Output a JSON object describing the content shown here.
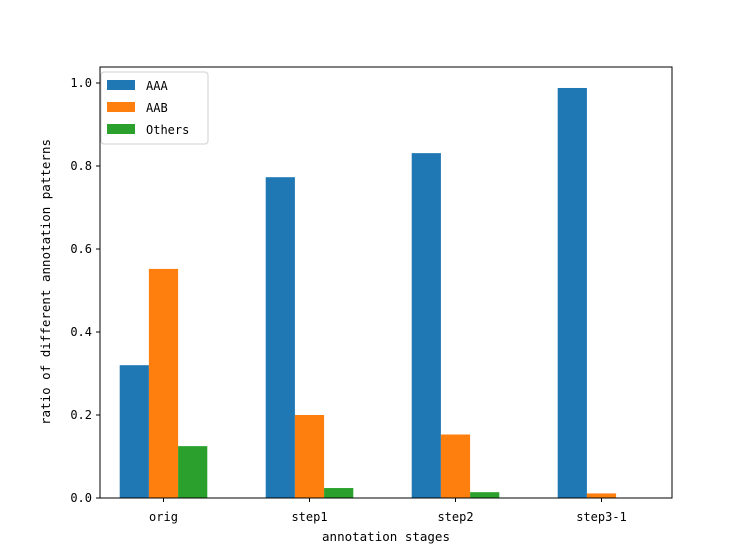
{
  "chart_data": {
    "type": "bar",
    "title": "",
    "xlabel": "annotation stages",
    "ylabel": "ratio of different annotation patterns",
    "categories": [
      "orig",
      "step1",
      "step2",
      "step3-1"
    ],
    "series": [
      {
        "name": "AAA",
        "color": "#1f77b4",
        "values": [
          0.32,
          0.773,
          0.831,
          0.988
        ]
      },
      {
        "name": "AAB",
        "color": "#ff7f0e",
        "values": [
          0.552,
          0.2,
          0.153,
          0.011
        ]
      },
      {
        "name": "Others",
        "color": "#2ca02c",
        "values": [
          0.125,
          0.024,
          0.014,
          0.0
        ]
      }
    ],
    "ylim": [
      0,
      1.038
    ],
    "yticks": [
      "0.0",
      "0.2",
      "0.4",
      "0.6",
      "0.8",
      "1.0"
    ],
    "legend": "top-left",
    "grid": false
  }
}
